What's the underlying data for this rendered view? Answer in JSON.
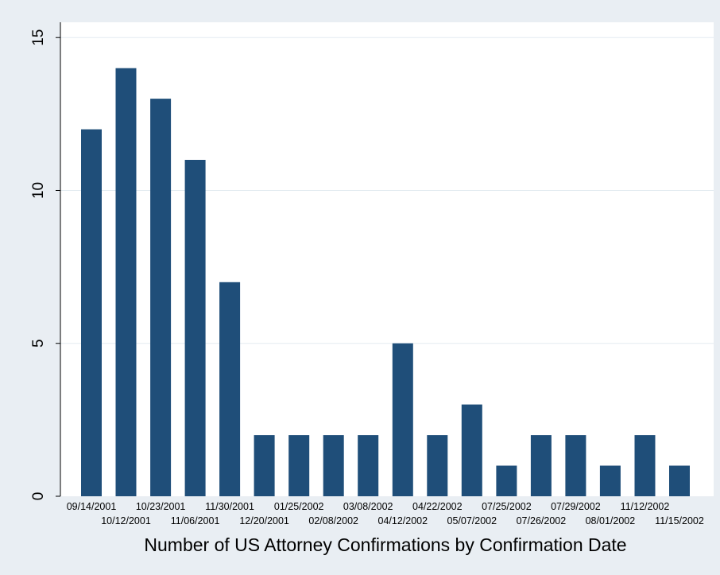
{
  "chart_data": {
    "type": "bar",
    "title": "",
    "xlabel": "Number of US Attorney Confirmations by Confirmation Date",
    "ylabel": "",
    "ylim": [
      0,
      15.5
    ],
    "yticks": [
      0,
      5,
      10,
      15
    ],
    "grid": true,
    "legend": "none",
    "categories": [
      "09/14/2001",
      "10/12/2001",
      "10/23/2001",
      "11/06/2001",
      "11/30/2001",
      "12/20/2001",
      "01/25/2002",
      "02/08/2002",
      "03/08/2002",
      "04/12/2002",
      "04/22/2002",
      "05/07/2002",
      "07/25/2002",
      "07/26/2002",
      "07/29/2002",
      "08/01/2002",
      "11/12/2002",
      "11/15/2002"
    ],
    "values": [
      12,
      14,
      13,
      11,
      7,
      2,
      2,
      2,
      2,
      5,
      2,
      3,
      1,
      2,
      2,
      1,
      2,
      1
    ],
    "colors": {
      "bar": "#1f4e79",
      "plot_background": "#ffffff",
      "outer_background": "#e9eef3",
      "grid": "#e3ebf1"
    }
  }
}
